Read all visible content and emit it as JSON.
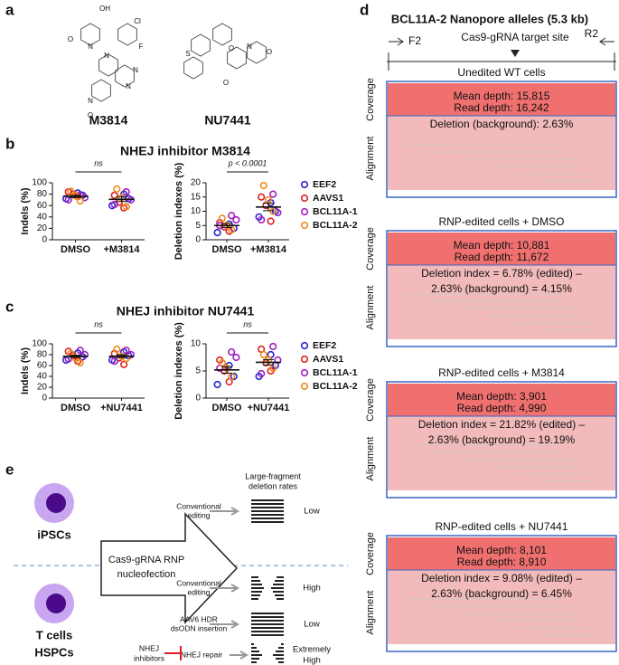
{
  "panel_labels": [
    "a",
    "b",
    "c",
    "d",
    "e"
  ],
  "panel_a": {
    "compounds": [
      "M3814",
      "NU7441"
    ],
    "atoms_m3814": [
      "OH",
      "Cl",
      "F",
      "O",
      "N",
      "N",
      "N",
      "N",
      "N",
      "O"
    ],
    "atoms_nu7441": [
      "S",
      "O",
      "O",
      "N",
      "O"
    ]
  },
  "panel_b": {
    "title": "NHEJ inhibitor M3814"
  },
  "panel_c": {
    "title": "NHEJ inhibitor NU7441"
  },
  "chart_data": [
    {
      "type": "dotplot",
      "ylabel": "Indels (%)",
      "categories": [
        "DMSO",
        "+M3814"
      ],
      "ylim": [
        0,
        100
      ],
      "yticks": [
        0,
        20,
        40,
        60,
        80,
        100
      ],
      "annotation": "ns",
      "mean": [
        76,
        71
      ],
      "error": [
        2,
        4
      ],
      "series": [
        {
          "color": "#2424d6",
          "values": [
            [
              72,
              78,
              82
            ],
            [
              60,
              72,
              80
            ]
          ]
        },
        {
          "color": "#e02020",
          "values": [
            [
              76,
              80,
              84
            ],
            [
              56,
              66,
              78
            ]
          ]
        },
        {
          "color": "#a020c0",
          "values": [
            [
              70,
              74,
              79
            ],
            [
              62,
              70,
              84
            ]
          ]
        },
        {
          "color": "#f08a1c",
          "values": [
            [
              68,
              77,
              85
            ],
            [
              58,
              74,
              89
            ]
          ]
        }
      ]
    },
    {
      "type": "dotplot",
      "ylabel": "Deletion indexes (%)",
      "categories": [
        "DMSO",
        "+M3814"
      ],
      "ylim": [
        0,
        20
      ],
      "yticks": [
        0,
        5,
        10,
        15,
        20
      ],
      "annotation": "p < 0.0001",
      "mean": [
        5,
        11.5
      ],
      "error": [
        0.7,
        1.3
      ],
      "legend": true,
      "series": [
        {
          "name": "EEF2",
          "color": "#2424d6",
          "values": [
            [
              2.5,
              4,
              5.5
            ],
            [
              8,
              10,
              13
            ]
          ]
        },
        {
          "name": "AAVS1",
          "color": "#e02020",
          "values": [
            [
              3,
              4.5,
              6
            ],
            [
              6.5,
              12,
              15
            ]
          ]
        },
        {
          "name": "BCL11A-1",
          "color": "#a020c0",
          "values": [
            [
              5,
              7,
              8.5
            ],
            [
              7,
              9.5,
              16
            ]
          ]
        },
        {
          "name": "BCL11A-2",
          "color": "#f08a1c",
          "values": [
            [
              3.5,
              5,
              7.5
            ],
            [
              10,
              14,
              19
            ]
          ]
        }
      ]
    },
    {
      "type": "dotplot",
      "ylabel": "Indels (%)",
      "categories": [
        "DMSO",
        "+NU7441"
      ],
      "ylim": [
        0,
        100
      ],
      "yticks": [
        0,
        20,
        40,
        60,
        80,
        100
      ],
      "annotation": "ns",
      "mean": [
        77,
        77
      ],
      "error": [
        2,
        2.5
      ],
      "series": [
        {
          "color": "#2424d6",
          "values": [
            [
              70,
              76,
              83
            ],
            [
              70,
              78,
              85
            ]
          ]
        },
        {
          "color": "#e02020",
          "values": [
            [
              68,
              78,
              86
            ],
            [
              62,
              74,
              82
            ]
          ]
        },
        {
          "color": "#a020c0",
          "values": [
            [
              72,
              80,
              88
            ],
            [
              68,
              80,
              88
            ]
          ]
        },
        {
          "color": "#f08a1c",
          "values": [
            [
              65,
              74,
              82
            ],
            [
              73,
              77,
              90
            ]
          ]
        }
      ]
    },
    {
      "type": "dotplot",
      "ylabel": "Deletion indexes (%)",
      "categories": [
        "DMSO",
        "+NU7441"
      ],
      "ylim": [
        0,
        10
      ],
      "yticks": [
        0,
        5,
        10
      ],
      "annotation": "ns",
      "mean": [
        5.2,
        6.6
      ],
      "error": [
        0.6,
        0.5
      ],
      "legend": true,
      "series": [
        {
          "name": "EEF2",
          "color": "#2424d6",
          "values": [
            [
              2.5,
              4,
              6
            ],
            [
              4,
              6,
              8
            ]
          ]
        },
        {
          "name": "AAVS1",
          "color": "#e02020",
          "values": [
            [
              3,
              5,
              7
            ],
            [
              5,
              6.5,
              9
            ]
          ]
        },
        {
          "name": "BCL11A-1",
          "color": "#a020c0",
          "values": [
            [
              5.5,
              7.5,
              8.5
            ],
            [
              4.5,
              7,
              9.5
            ]
          ]
        },
        {
          "name": "BCL11A-2",
          "color": "#f08a1c",
          "values": [
            [
              4,
              5.5,
              6.5
            ],
            [
              5.5,
              7,
              8
            ]
          ]
        }
      ]
    }
  ],
  "panel_d": {
    "title": "BCL11A-2 Nanopore alleles (5.3 kb)",
    "primer_left": "F2",
    "primer_right": "R2",
    "target": "Cas9-gRNA target site",
    "coverage_label": "Coverage",
    "alignment_label": "Alignment",
    "blocks": [
      {
        "title": "Unedited WT cells",
        "lines": [
          "Mean depth: 15,815",
          "Read depth: 16,242",
          "Deletion (background): 2.63%"
        ]
      },
      {
        "title": "RNP-edited cells + DMSO",
        "lines": [
          "Mean depth: 10,881",
          "Read depth: 11,672",
          "Deletion index = 6.78% (edited) –",
          "2.63% (background) = 4.15%"
        ]
      },
      {
        "title": "RNP-edited cells + M3814",
        "lines": [
          "Mean depth: 3,901",
          "Read depth: 4,990",
          "Deletion index = 21.82% (edited) –",
          "2.63% (background) = 19.19%"
        ]
      },
      {
        "title": "RNP-edited cells + NU7441",
        "lines": [
          "Mean depth: 8,101",
          "Read depth: 8,910",
          "Deletion index = 9.08% (edited) –",
          "2.63% (background) = 6.45%"
        ]
      }
    ]
  },
  "panel_e": {
    "cell_top": "iPSCs",
    "cell_bottom": [
      "T cells",
      "HSPCs"
    ],
    "arrow_text": [
      "Cas9-gRNA RNP",
      "nucleofection"
    ],
    "header": [
      "Large-fragment",
      "deletion rates"
    ],
    "rows": [
      {
        "label": [
          "Conventional",
          "editing"
        ],
        "rate": [
          "Low"
        ]
      },
      {
        "label": [
          "Conventional",
          "editing"
        ],
        "rate": [
          "High"
        ]
      },
      {
        "label": [
          "AAV6 HDR",
          "dsODN insertion"
        ],
        "rate": [
          "Low"
        ]
      },
      {
        "label": [
          "NHEJ repair"
        ],
        "rate": [
          "Extremely",
          "High"
        ]
      }
    ],
    "inhibitor": [
      "NHEJ",
      "inhibitors"
    ]
  }
}
